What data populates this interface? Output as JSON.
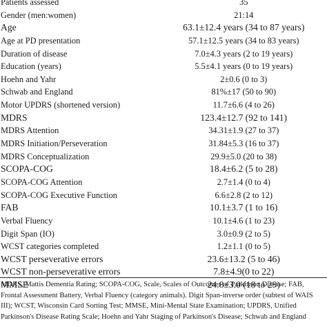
{
  "table": {
    "rows": [
      {
        "label": "Patients assessed",
        "value": "35"
      },
      {
        "label": "Gender (men:women)",
        "value": "21:14"
      },
      {
        "label": "Age",
        "value": "63.1±12.4 years (34 to 87 years)",
        "big": true
      },
      {
        "label": "Age at PD presentation",
        "value": "57.1±12.5 years (34 to 83 years)"
      },
      {
        "label": "Duration of disease",
        "value": "7.0±4.3 years (2 to 19 years)"
      },
      {
        "label": "Education (years)",
        "value": "5.5±4.1 years (0 to 19 years)"
      },
      {
        "label": "Hoehn and Yahr",
        "value": "2±0.6 (0 to 3)"
      },
      {
        "label": "Schwab and England",
        "value": "81%±17 (50 to 90)"
      },
      {
        "label": "Motor UPDRS (shortened version)",
        "value": "11.7±6.6 (4 to 26)"
      },
      {
        "label": "MDRS",
        "value": "123.4±12.7 (92 to 141)",
        "big": true
      },
      {
        "label": "MDRS Attention",
        "value": "34.31±1.9 (27 to 37)"
      },
      {
        "label": "MDRS Initiation/Perseveration",
        "value": "31.84±5.3 (16 to 37)"
      },
      {
        "label": "MDRS Conceptualization",
        "value": "29.9±5.0 (20 to 38)"
      },
      {
        "label": "SCOPA-COG",
        "value": "18.4±6.2 (5 to 28)",
        "big": true
      },
      {
        "label": "SCOPA-COG Attention",
        "value": "2.7±1.4 (0 to 4)"
      },
      {
        "label": "SCOPA-COG Executive Function",
        "value": "6.6±2.8 (2 to 12)"
      },
      {
        "label": "FAB",
        "value": "10.1±3.7 (1 to 16)",
        "big": true
      },
      {
        "label": "Verbal Fluency",
        "value": "10.1±4.6 (1 to 23)"
      },
      {
        "label": "Digit Span (IO)",
        "value": "3.0±0.9 (2 to 5)"
      },
      {
        "label": "WCST categories completed",
        "value": "1.2±1.1 (0 to 5)"
      },
      {
        "label": "WCST perseverative errors",
        "value": "23.6±13.2 (5 to 46)",
        "big": true
      },
      {
        "label": "WCST non-perseverative errors",
        "value": "7.8±4.9(0 to 22)",
        "big": true
      },
      {
        "label": "MMSE",
        "value": "24.8±3.0 (18 to 29)",
        "big": true
      }
    ]
  },
  "footnote": {
    "lines": [
      "MDRS, Mattis Dementia Rating; SCOPA-COG, Scale, Scales of Outcomes of Parkinson Disease; FAB,",
      "Frontal Assessment Battery, Verbal Fluency (category animals). Digit Span-inverse order (subtest of WAIS",
      "III); WCST, Wisconsin Card Sorting Test; MMSE, Mini-Mental State Examination; UPDRS, Unified",
      "Parkinson's Disease Rating Scale; Hoehn and Yahr Staging of Parkinson's Disease; Schwab and England"
    ]
  }
}
